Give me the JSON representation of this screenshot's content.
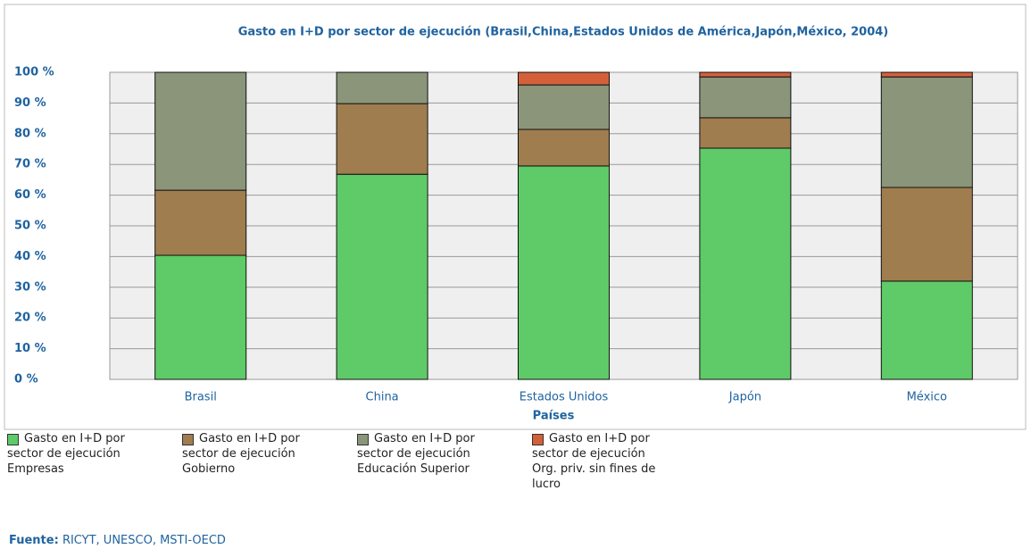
{
  "chart_data": {
    "type": "stacked_bar",
    "title": "Gasto en I+D por sector de ejecución (Brasil,China,Estados Unidos de América,Japón,México, 2004)",
    "x_label": "Países",
    "categories": [
      "Brasil",
      "China",
      "Estados Unidos",
      "Japón",
      "México"
    ],
    "series": [
      {
        "name": "Gasto en I+D por sector de ejecución Empresas",
        "color": "#5fca68",
        "values": [
          40.4,
          66.8,
          69.5,
          75.3,
          32.0
        ]
      },
      {
        "name": "Gasto en I+D por sector de ejecución Gobierno",
        "color": "#a07d4f",
        "values": [
          21.2,
          23.0,
          11.9,
          9.9,
          30.5
        ]
      },
      {
        "name": "Gasto en I+D por sector de ejecución Educación Superior",
        "color": "#8a957a",
        "values": [
          38.4,
          10.2,
          14.5,
          13.3,
          36.0
        ]
      },
      {
        "name": "Gasto en I+D por sector de ejecución Org. priv. sin fines de lucro",
        "color": "#d4603a",
        "values": [
          0,
          0,
          4.1,
          1.5,
          1.5
        ]
      }
    ],
    "ylim": [
      0,
      100
    ],
    "yticks": [
      {
        "value": 0,
        "label": "0 %"
      },
      {
        "value": 10,
        "label": "10 %"
      },
      {
        "value": 20,
        "label": "20 %"
      },
      {
        "value": 30,
        "label": "30 %"
      },
      {
        "value": 40,
        "label": "40 %"
      },
      {
        "value": 50,
        "label": "50 %"
      },
      {
        "value": 60,
        "label": "60 %"
      },
      {
        "value": 70,
        "label": "70 %"
      },
      {
        "value": 80,
        "label": "80 %"
      },
      {
        "value": 90,
        "label": "90 %"
      },
      {
        "value": 100,
        "label": "100 %"
      }
    ],
    "grid": true,
    "source_label": "Fuente:",
    "source": "RICYT, UNESCO, MSTI-OECD"
  }
}
